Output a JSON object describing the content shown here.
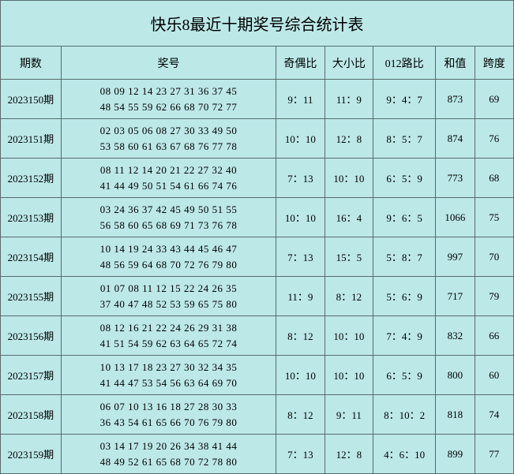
{
  "title": "快乐8最近十期奖号综合统计表",
  "headers": {
    "period": "期数",
    "numbers": "奖号",
    "oddeven": "奇偶比",
    "bigsmall": "大小比",
    "route012": "012路比",
    "sum": "和值",
    "span": "跨度"
  },
  "rows": [
    {
      "period": "2023150期",
      "line1": "08 09 12 14 23 27 31 36 37 45",
      "line2": "48 54 55 59 62 66 68 70 72 77",
      "oddeven": "9：11",
      "bigsmall": "11：9",
      "route012": "9：4：7",
      "sum": "873",
      "span": "69"
    },
    {
      "period": "2023151期",
      "line1": "02 03 05 06 08 27 30 33 49 50",
      "line2": "53 58 60 61 63 67 68 76 77 78",
      "oddeven": "10：10",
      "bigsmall": "12：8",
      "route012": "8：5：7",
      "sum": "874",
      "span": "76"
    },
    {
      "period": "2023152期",
      "line1": "08 11 12 14 20 21 22 27 32 40",
      "line2": "41 44 49 50 51 54 61 66 74 76",
      "oddeven": "7：13",
      "bigsmall": "10：10",
      "route012": "6：5：9",
      "sum": "773",
      "span": "68"
    },
    {
      "period": "2023153期",
      "line1": "03 24 36 37 42 45 49 50 51 55",
      "line2": "56 58 60 65 68 69 71 73 76 78",
      "oddeven": "10：10",
      "bigsmall": "16：4",
      "route012": "9：6：5",
      "sum": "1066",
      "span": "75"
    },
    {
      "period": "2023154期",
      "line1": "10 14 19 24 33 43 44 45 46 47",
      "line2": "48 56 59 64 68 70 72 76 79 80",
      "oddeven": "7：13",
      "bigsmall": "15：5",
      "route012": "5：8：7",
      "sum": "997",
      "span": "70"
    },
    {
      "period": "2023155期",
      "line1": "01 07 08 11 12 15 22 24 26 35",
      "line2": "37 40 47 48 52 53 59 65 75 80",
      "oddeven": "11：9",
      "bigsmall": "8：12",
      "route012": "5：6：9",
      "sum": "717",
      "span": "79"
    },
    {
      "period": "2023156期",
      "line1": "08 12 16 21 22 24 26 29 31 38",
      "line2": "41 51 54 59 62 63 64 65 72 74",
      "oddeven": "8：12",
      "bigsmall": "10：10",
      "route012": "7：4：9",
      "sum": "832",
      "span": "66"
    },
    {
      "period": "2023157期",
      "line1": "10 13 17 18 23 27 30 32 34 35",
      "line2": "41 44 47 53 54 56 63 64 69 70",
      "oddeven": "10：10",
      "bigsmall": "10：10",
      "route012": "6：5：9",
      "sum": "800",
      "span": "60"
    },
    {
      "period": "2023158期",
      "line1": "06 07 10 13 16 18 27 28 30 33",
      "line2": "36 43 54 61 65 66 70 76 79 80",
      "oddeven": "8：12",
      "bigsmall": "9：11",
      "route012": "8：10：2",
      "sum": "818",
      "span": "74"
    },
    {
      "period": "2023159期",
      "line1": "03 14 17 19 20 26 34 38 41 44",
      "line2": "48 49 52 61 65 68 70 72 78 80",
      "oddeven": "7：13",
      "bigsmall": "12：8",
      "route012": "4：6：10",
      "sum": "899",
      "span": "77"
    }
  ],
  "colors": {
    "background": "#bce8e8",
    "border": "#5a6b6b",
    "text": "#000000"
  }
}
